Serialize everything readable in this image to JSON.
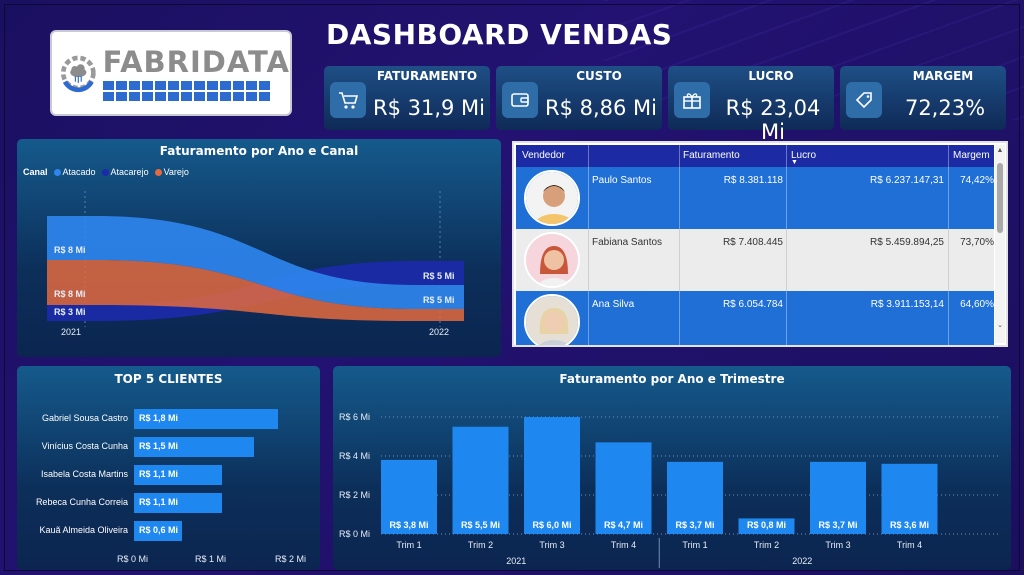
{
  "header": {
    "title": "DASHBOARD VENDAS",
    "logo_text": "FABRIDATA"
  },
  "kpis": [
    {
      "label": "FATURAMENTO",
      "value": "R$ 31,9 Mi",
      "icon": "cart-icon"
    },
    {
      "label": "CUSTO",
      "value": "R$ 8,86 Mi",
      "icon": "wallet-icon"
    },
    {
      "label": "LUCRO",
      "value": "R$ 23,04 Mi",
      "icon": "gift-icon"
    },
    {
      "label": "MARGEM",
      "value": "72,23%",
      "icon": "tag-icon"
    }
  ],
  "colors": {
    "atacado": "#2f86f0",
    "atacarejo": "#1a2aa8",
    "varejo": "#e46a3f",
    "bar": "#1e88f0",
    "table_header": "#1c2ba4",
    "row_selected": "#1f6fd6"
  },
  "ribbon": {
    "title": "Faturamento por Ano e Canal",
    "legend_label": "Canal",
    "legend": [
      "Atacado",
      "Atacarejo",
      "Varejo"
    ],
    "years": [
      "2021",
      "2022"
    ],
    "labels_2021": [
      "R$ 8 Mi",
      "R$ 8 Mi",
      "R$ 3 Mi"
    ],
    "labels_2022": [
      "R$ 5 Mi",
      "R$ 5 Mi"
    ]
  },
  "table": {
    "columns": [
      "Vendedor",
      "Faturamento",
      "Lucro",
      "Margem"
    ],
    "rows": [
      {
        "name": "Paulo Santos",
        "faturamento": "R$ 8.381.118",
        "lucro": "R$ 6.237.147,31",
        "margem": "74,42%"
      },
      {
        "name": "Fabiana Santos",
        "faturamento": "R$ 7.408.445",
        "lucro": "R$ 5.459.894,25",
        "margem": "73,70%"
      },
      {
        "name": "Ana Silva",
        "faturamento": "R$ 6.054.784",
        "lucro": "R$ 3.911.153,14",
        "margem": "64,60%"
      }
    ]
  },
  "chart_data": [
    {
      "type": "area",
      "title": "Faturamento por Ano e Canal",
      "legend_title": "Canal",
      "categories": [
        "2021",
        "2022"
      ],
      "series": [
        {
          "name": "Atacado",
          "values": [
            8,
            5
          ]
        },
        {
          "name": "Atacarejo",
          "values": [
            3,
            5
          ]
        },
        {
          "name": "Varejo",
          "values": [
            8,
            1
          ]
        }
      ],
      "data_labels": {
        "2021": [
          "R$ 8 Mi",
          "R$ 8 Mi",
          "R$ 3 Mi"
        ],
        "2022": [
          "R$ 5 Mi",
          "R$ 5 Mi"
        ]
      }
    },
    {
      "type": "bar",
      "orientation": "horizontal",
      "title": "TOP 5 CLIENTES",
      "categories": [
        "Gabriel Sousa Castro",
        "Vinícius Costa Cunha",
        "Isabela Costa Martins",
        "Rebeca Cunha Correia",
        "Kauã Almeida Oliveira"
      ],
      "values": [
        1.8,
        1.5,
        1.1,
        1.1,
        0.6
      ],
      "data_labels": [
        "R$ 1,8 Mi",
        "R$ 1,5 Mi",
        "R$ 1,1 Mi",
        "R$ 1,1 Mi",
        "R$ 0,6 Mi"
      ],
      "xlim": [
        0,
        2
      ],
      "xticks": [
        "R$ 0 Mi",
        "R$ 1 Mi",
        "R$ 2 Mi"
      ]
    },
    {
      "type": "bar",
      "title": "Faturamento por Ano e Trimestre",
      "categories": [
        "Trim 1",
        "Trim 2",
        "Trim 3",
        "Trim 4",
        "Trim 1",
        "Trim 2",
        "Trim 3",
        "Trim 4"
      ],
      "groups": [
        {
          "label": "2021",
          "span": 4
        },
        {
          "label": "2022",
          "span": 4
        }
      ],
      "values": [
        3.8,
        5.5,
        6.0,
        4.7,
        3.7,
        0.8,
        3.7,
        3.6
      ],
      "data_labels": [
        "R$ 3,8 Mi",
        "R$ 5,5 Mi",
        "R$ 6,0 Mi",
        "R$ 4,7 Mi",
        "R$ 3,7 Mi",
        "R$ 0,8 Mi",
        "R$ 3,7 Mi",
        "R$ 3,6 Mi"
      ],
      "ylim": [
        0,
        6
      ],
      "yticks": [
        "R$ 0 Mi",
        "R$ 2 Mi",
        "R$ 4 Mi",
        "R$ 6 Mi"
      ],
      "grid": true
    }
  ]
}
